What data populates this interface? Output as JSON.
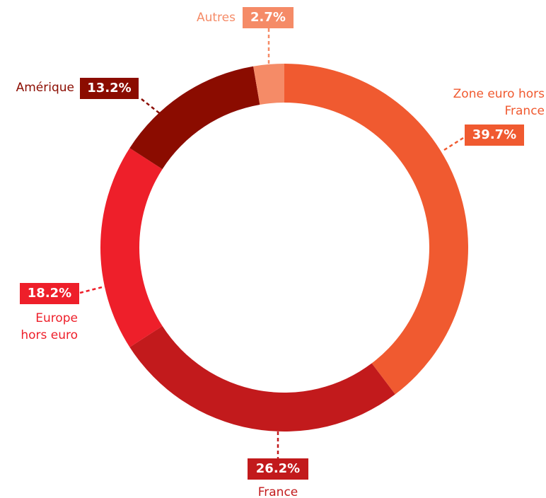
{
  "chart_data": {
    "type": "donut",
    "categories": [
      "Zone euro hors France",
      "France",
      "Europe hors euro",
      "Amérique",
      "Autres"
    ],
    "values": [
      39.7,
      26.2,
      18.2,
      13.2,
      2.7
    ],
    "value_labels": [
      "39.7%",
      "26.2%",
      "18.2%",
      "13.2%",
      "2.7%"
    ],
    "colors": [
      "#f05a30",
      "#c21a1c",
      "#ee1f2a",
      "#8b0c00",
      "#f58b67"
    ]
  }
}
